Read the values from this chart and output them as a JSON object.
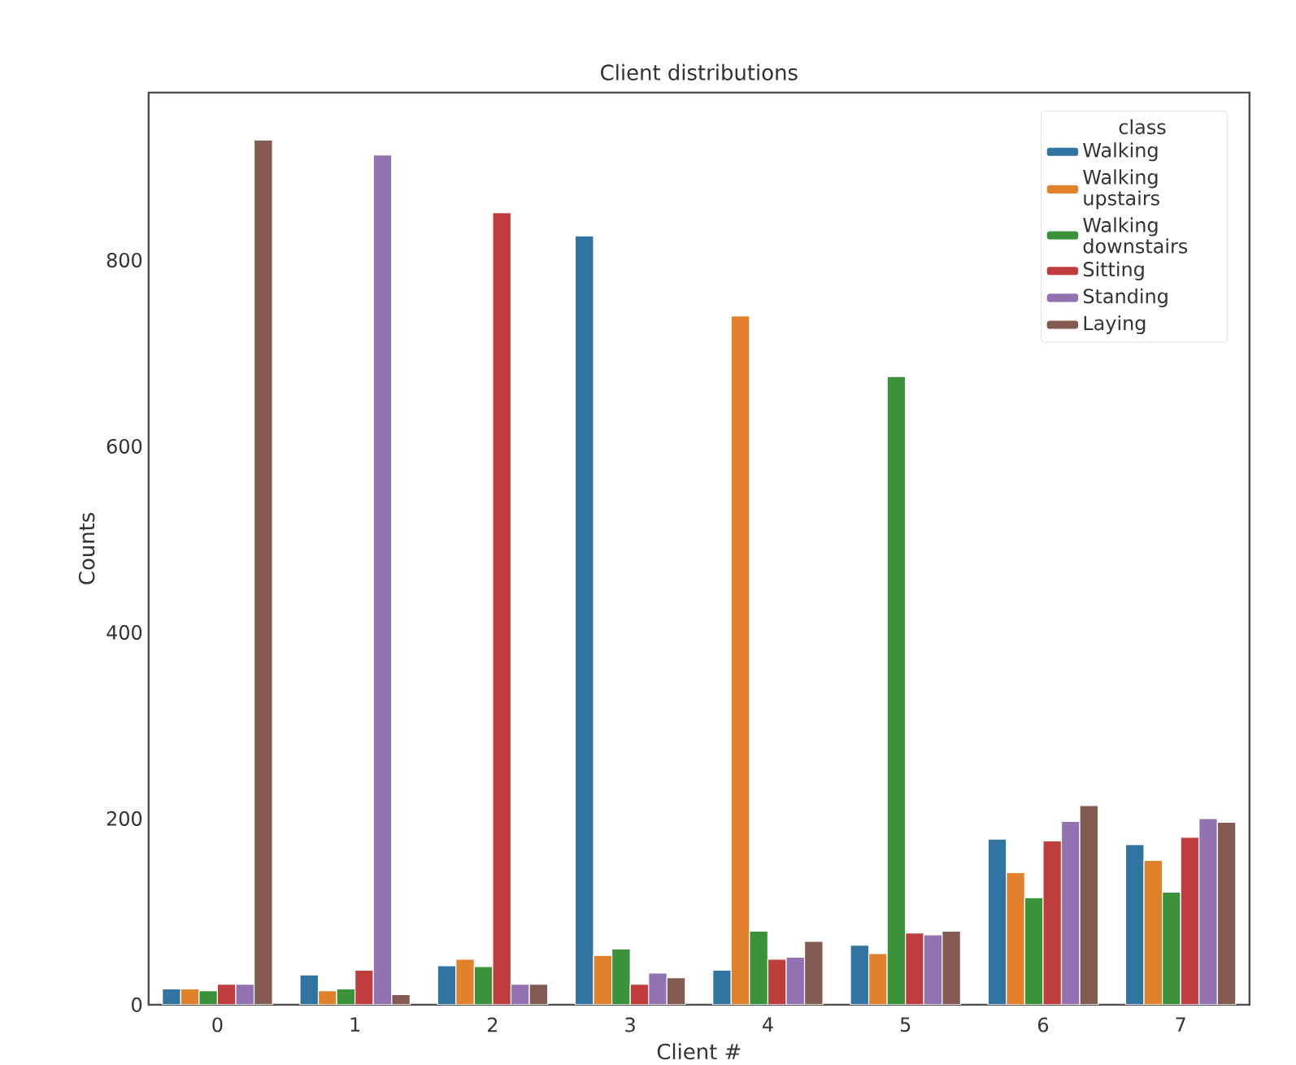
{
  "chart_data": {
    "type": "bar",
    "title": "Client distributions",
    "xlabel": "Client #",
    "ylabel": "Counts",
    "legend_title": "class",
    "legend": "top right",
    "categories": [
      "0",
      "1",
      "2",
      "3",
      "4",
      "5",
      "6",
      "7"
    ],
    "ylim": [
      0,
      980
    ],
    "yticks": [
      0,
      200,
      400,
      600,
      800
    ],
    "series": [
      {
        "name": "Walking",
        "color": "#3274a1",
        "values": [
          17,
          32,
          42,
          826,
          37,
          64,
          178,
          172
        ]
      },
      {
        "name": "Walking upstairs",
        "color": "#e1812c",
        "values": [
          17,
          15,
          49,
          53,
          740,
          55,
          142,
          155
        ]
      },
      {
        "name": "Walking downstairs",
        "color": "#3a923a",
        "values": [
          15,
          17,
          41,
          60,
          79,
          675,
          115,
          121
        ]
      },
      {
        "name": "Sitting",
        "color": "#c03d3e",
        "values": [
          22,
          37,
          851,
          22,
          49,
          77,
          176,
          180
        ]
      },
      {
        "name": "Standing",
        "color": "#9372b2",
        "values": [
          22,
          913,
          22,
          34,
          51,
          75,
          197,
          200
        ]
      },
      {
        "name": "Laying",
        "color": "#845b53",
        "values": [
          929,
          11,
          22,
          29,
          68,
          79,
          214,
          196
        ]
      }
    ]
  }
}
